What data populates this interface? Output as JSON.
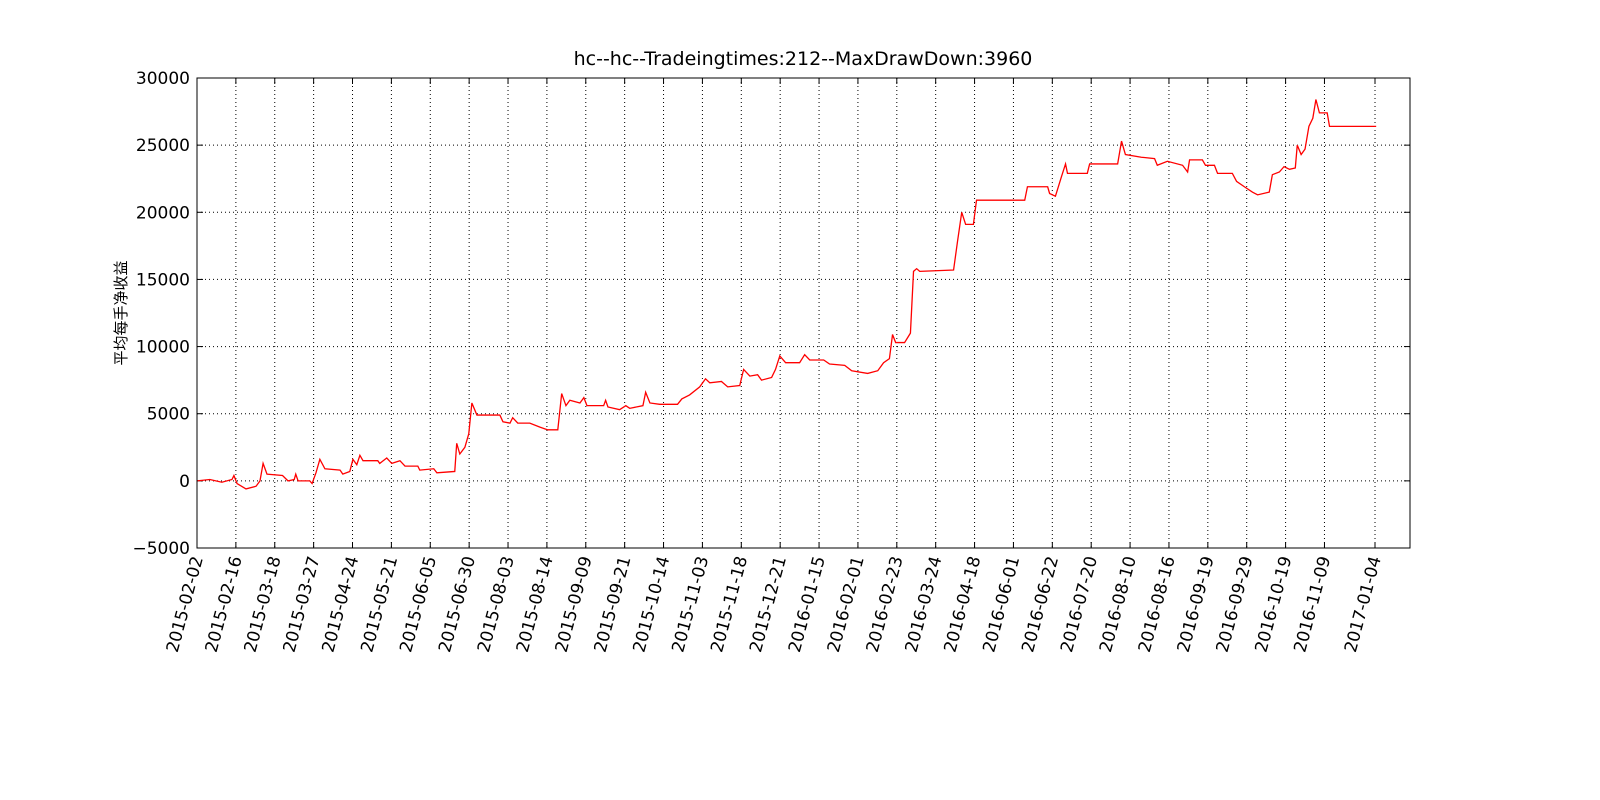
{
  "chart_data": {
    "type": "line",
    "title": "hc--hc--Tradeingtimes:212--MaxDrawDown:3960",
    "ylabel": "平均每手净收益",
    "color": "#ff0000",
    "grid": true,
    "xlim": [
      0,
      312
    ],
    "ylim": [
      -5000,
      30000
    ],
    "yticks": [
      {
        "value": -5000,
        "label": "−5000"
      },
      0,
      5000,
      10000,
      15000,
      20000,
      25000,
      30000
    ],
    "xticks": [
      {
        "value": 0,
        "label": "2015-02-02"
      },
      {
        "value": 10,
        "label": "2015-02-16"
      },
      {
        "value": 20,
        "label": "2015-03-18"
      },
      {
        "value": 30,
        "label": "2015-03-27"
      },
      {
        "value": 40,
        "label": "2015-04-24"
      },
      {
        "value": 50,
        "label": "2015-05-21"
      },
      {
        "value": 60,
        "label": "2015-06-05"
      },
      {
        "value": 70,
        "label": "2015-06-30"
      },
      {
        "value": 80,
        "label": "2015-08-03"
      },
      {
        "value": 90,
        "label": "2015-08-14"
      },
      {
        "value": 100,
        "label": "2015-09-09"
      },
      {
        "value": 110,
        "label": "2015-09-21"
      },
      {
        "value": 120,
        "label": "2015-10-14"
      },
      {
        "value": 130,
        "label": "2015-11-03"
      },
      {
        "value": 140,
        "label": "2015-11-18"
      },
      {
        "value": 150,
        "label": "2015-12-21"
      },
      {
        "value": 160,
        "label": "2016-01-15"
      },
      {
        "value": 170,
        "label": "2016-02-01"
      },
      {
        "value": 180,
        "label": "2016-02-23"
      },
      {
        "value": 190,
        "label": "2016-03-24"
      },
      {
        "value": 200,
        "label": "2016-04-18"
      },
      {
        "value": 210,
        "label": "2016-06-01"
      },
      {
        "value": 220,
        "label": "2016-06-22"
      },
      {
        "value": 230,
        "label": "2016-07-20"
      },
      {
        "value": 240,
        "label": "2016-08-10"
      },
      {
        "value": 250,
        "label": "2016-08-16"
      },
      {
        "value": 260,
        "label": "2016-09-19"
      },
      {
        "value": 270,
        "label": "2016-09-29"
      },
      {
        "value": 280,
        "label": "2016-10-19"
      },
      {
        "value": 290,
        "label": "2016-11-09"
      },
      {
        "value": 303,
        "label": "2017-01-04"
      }
    ],
    "x": [
      0,
      3.3,
      6.4,
      9,
      9.5,
      10.3,
      12.6,
      15.2,
      16.2,
      17,
      18,
      22,
      23.4,
      25,
      25.4,
      26,
      29,
      29.6,
      30.6,
      31.6,
      32.9,
      36.8,
      37.5,
      39.3,
      40.1,
      41.1,
      41.9,
      42.7,
      46.5,
      47,
      48.8,
      50.1,
      52.2,
      53.5,
      56.8,
      57.3,
      60.9,
      61.7,
      66.3,
      66.8,
      67.6,
      68.9,
      69.9,
      70.7,
      72,
      77.9,
      78.7,
      80.5,
      81.2,
      82.5,
      85.6,
      88.2,
      90.2,
      92.8,
      93.8,
      94.9,
      95.9,
      98.5,
      99.5,
      100.3,
      104.6,
      105.1,
      105.7,
      108.7,
      110.3,
      111.3,
      114.7,
      115.4,
      116.5,
      119,
      123.6,
      124.7,
      126.7,
      129.3,
      130.8,
      131.9,
      134.9,
      136.5,
      139.6,
      140.6,
      142.2,
      144.2,
      145.2,
      147.8,
      148.8,
      149.9,
      151.4,
      155,
      156.3,
      157.6,
      161.2,
      162.7,
      166.6,
      168.4,
      172.5,
      175.1,
      176.6,
      178.1,
      178.9,
      179.7,
      182,
      183.5,
      184.3,
      185.1,
      185.9,
      194.6,
      195.6,
      196.7,
      197.7,
      199.7,
      200.5,
      212.9,
      213.6,
      218.8,
      219.3,
      220.8,
      222.4,
      223.4,
      223.9,
      229,
      229.6,
      236.8,
      237.8,
      238.8,
      242.9,
      246.3,
      247,
      249.6,
      253.5,
      254.8,
      255.3,
      258.6,
      259.4,
      261.7,
      262.5,
      266.3,
      267.4,
      269.4,
      271.5,
      272.8,
      275.8,
      276.6,
      278.4,
      279.6,
      281,
      282.5,
      283,
      284,
      285,
      286,
      287,
      287.8,
      288.7,
      290.7,
      291.3,
      303.3
    ],
    "values": [
      0,
      100,
      -100,
      100,
      400,
      -200,
      -600,
      -400,
      0,
      1300,
      500,
      400,
      0,
      100,
      500,
      0,
      0,
      -200,
      600,
      1600,
      900,
      800,
      500,
      700,
      1600,
      1200,
      1900,
      1500,
      1500,
      1300,
      1700,
      1300,
      1500,
      1100,
      1100,
      800,
      900,
      600,
      700,
      2800,
      2000,
      2500,
      3500,
      5800,
      4900,
      4900,
      4400,
      4300,
      4700,
      4300,
      4300,
      4000,
      3800,
      3800,
      6500,
      5600,
      6000,
      5800,
      6200,
      5600,
      5600,
      6000,
      5500,
      5300,
      5600,
      5400,
      5600,
      6600,
      5800,
      5700,
      5700,
      6100,
      6400,
      7000,
      7600,
      7300,
      7400,
      7000,
      7100,
      8300,
      7800,
      7900,
      7500,
      7700,
      8300,
      9300,
      8800,
      8800,
      9400,
      9000,
      9000,
      8700,
      8600,
      8200,
      8000,
      8200,
      8800,
      9100,
      10900,
      10300,
      10300,
      11000,
      15600,
      15800,
      15600,
      15700,
      17800,
      20000,
      19100,
      19100,
      20900,
      20900,
      21900,
      21900,
      21400,
      21200,
      22700,
      23600,
      22900,
      22900,
      23600,
      23600,
      25300,
      24300,
      24100,
      24000,
      23500,
      23800,
      23500,
      23000,
      23900,
      23900,
      23500,
      23500,
      22900,
      22900,
      22300,
      21900,
      21500,
      21300,
      21500,
      22800,
      23000,
      23400,
      23200,
      23300,
      25000,
      24300,
      24700,
      26400,
      27000,
      28400,
      27400,
      27400,
      26400,
      26400
    ]
  }
}
